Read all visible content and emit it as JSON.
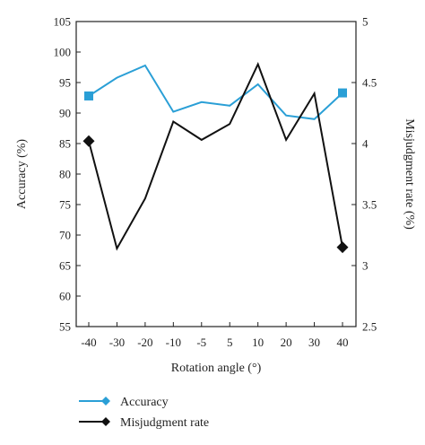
{
  "chart_data": {
    "type": "line",
    "xlabel": "Rotation angle (°)",
    "categories": [
      "-40",
      "-30",
      "-20",
      "-10",
      "-5",
      "5",
      "10",
      "20",
      "30",
      "40"
    ],
    "y_left": {
      "label": "Accuracy (%)",
      "lim": [
        55,
        105
      ],
      "ticks": [
        55,
        60,
        65,
        70,
        75,
        80,
        85,
        90,
        95,
        100,
        105
      ]
    },
    "y_right": {
      "label": "Misjudgment rate (%)",
      "lim": [
        2.5,
        5
      ],
      "ticks": [
        "2.5",
        "3",
        "3.5",
        "4",
        "4.5",
        "5"
      ]
    },
    "series": [
      {
        "name": "Accuracy",
        "axis": "left",
        "color": "#2a9fd6",
        "marker": "square",
        "values": [
          92.8,
          95.8,
          97.8,
          90.2,
          91.8,
          91.2,
          94.7,
          89.6,
          89.0,
          93.3
        ]
      },
      {
        "name": "Misjudgment rate",
        "axis": "right",
        "color": "#111111",
        "marker": "diamond",
        "values": [
          4.02,
          3.14,
          3.55,
          4.18,
          4.03,
          4.16,
          4.65,
          4.03,
          4.41,
          3.15
        ]
      }
    ],
    "legend_position": "bottom-left"
  }
}
